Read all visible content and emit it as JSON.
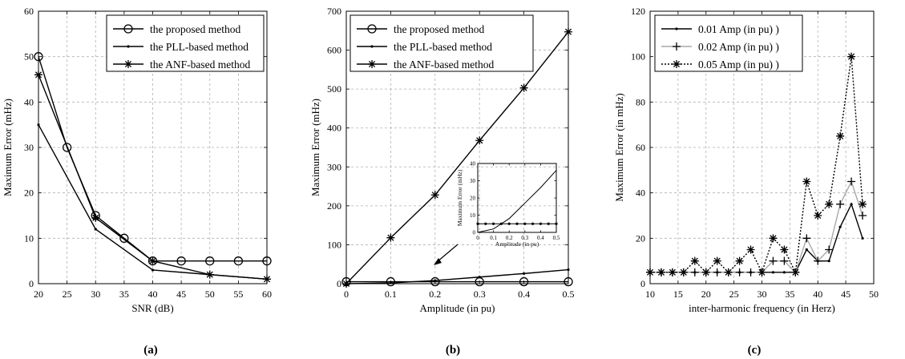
{
  "charts": [
    {
      "id": "a",
      "caption": "(a)",
      "chart_data": {
        "type": "line",
        "title": "",
        "xlabel": "SNR (dB)",
        "ylabel": "Maximum Error (mHz)",
        "xlim": [
          20,
          60
        ],
        "ylim": [
          0,
          60
        ],
        "xticks": [
          20,
          25,
          30,
          35,
          40,
          45,
          50,
          55,
          60
        ],
        "yticks": [
          0,
          10,
          20,
          30,
          40,
          50,
          60
        ],
        "grid": true,
        "legend_position": "top-right",
        "series": [
          {
            "name": "the proposed method",
            "marker": "circle",
            "color": "#000000",
            "x": [
              20,
              25,
              30,
              35,
              40,
              45,
              50,
              55,
              60
            ],
            "y": [
              50,
              30,
              15,
              10,
              5,
              5,
              5,
              5,
              5
            ]
          },
          {
            "name": "the PLL-based method",
            "marker": "dot",
            "color": "#000000",
            "x": [
              20,
              30,
              40,
              50,
              60
            ],
            "y": [
              35,
              12,
              3,
              2,
              1
            ]
          },
          {
            "name": "the ANF-based method",
            "marker": "star",
            "color": "#000000",
            "x": [
              20,
              30,
              40,
              50,
              60
            ],
            "y": [
              46,
              14.5,
              5,
              2,
              1
            ]
          }
        ]
      }
    },
    {
      "id": "b",
      "caption": "(b)",
      "chart_data": {
        "type": "line",
        "title": "",
        "xlabel": "Amplitude (in pu)",
        "ylabel": "Maximum Error (mHz)",
        "xlim": [
          0,
          0.5
        ],
        "ylim": [
          0,
          700
        ],
        "xticks": [
          0,
          0.1,
          0.2,
          0.3,
          0.4,
          0.5
        ],
        "xticklabels": [
          "0",
          "0.1",
          "0.2",
          "0.3",
          "0.4",
          "0.5"
        ],
        "yticks": [
          0,
          100,
          200,
          300,
          400,
          500,
          600,
          700
        ],
        "grid": true,
        "legend_position": "top-left",
        "series": [
          {
            "name": "the proposed method",
            "marker": "circle",
            "color": "#000000",
            "x": [
              0,
              0.1,
              0.2,
              0.3,
              0.4,
              0.5
            ],
            "y": [
              5,
              5,
              5,
              5,
              5,
              5
            ]
          },
          {
            "name": "the PLL-based method",
            "marker": "dot",
            "color": "#000000",
            "x": [
              0,
              0.1,
              0.2,
              0.3,
              0.4,
              0.5
            ],
            "y": [
              0,
              2,
              8,
              17,
              26,
              36
            ]
          },
          {
            "name": "the ANF-based method",
            "marker": "star",
            "color": "#000000",
            "x": [
              0,
              0.1,
              0.2,
              0.3,
              0.4,
              0.5
            ],
            "y": [
              0,
              118,
              228,
              368,
              503,
              647
            ]
          }
        ],
        "inset": {
          "xlabel": "Amplitude (in pu)",
          "ylabel": "Maximum Error (mHz)",
          "xlim": [
            0,
            0.5
          ],
          "ylim": [
            0,
            40
          ],
          "xticks": [
            0,
            0.1,
            0.2,
            0.3,
            0.4,
            0.5
          ],
          "xticklabels": [
            "0",
            "0.1",
            "0.2",
            "0.3",
            "0.4",
            "0.5"
          ],
          "yticks": [
            0,
            10,
            20,
            30,
            40
          ],
          "series": [
            {
              "name": "the proposed method",
              "marker": "dot",
              "x": [
                0,
                0.05,
                0.1,
                0.15,
                0.2,
                0.25,
                0.3,
                0.35,
                0.4,
                0.45,
                0.5
              ],
              "y": [
                5,
                5,
                5,
                5,
                5,
                5,
                5,
                5,
                5,
                5,
                5
              ]
            },
            {
              "name": "the PLL-based method",
              "marker": "none",
              "x": [
                0,
                0.1,
                0.2,
                0.3,
                0.4,
                0.5
              ],
              "y": [
                0,
                2,
                8,
                17,
                26,
                36
              ]
            }
          ]
        }
      }
    },
    {
      "id": "c",
      "caption": "(c)",
      "chart_data": {
        "type": "line",
        "title": "",
        "xlabel": "inter-harmonic frequency (in Herz)",
        "ylabel": "Maximum Error (in mHz)",
        "xlim": [
          10,
          50
        ],
        "ylim": [
          0,
          120
        ],
        "xticks": [
          10,
          15,
          20,
          25,
          30,
          35,
          40,
          45,
          50
        ],
        "yticks": [
          0,
          20,
          40,
          60,
          80,
          100,
          120
        ],
        "grid": true,
        "legend_position": "top-left",
        "series": [
          {
            "name": "0.01 Amp (in pu) )",
            "marker": "dot",
            "color": "#000000",
            "dash": "solid",
            "x": [
              10,
              12,
              14,
              16,
              18,
              20,
              22,
              24,
              26,
              28,
              30,
              32,
              34,
              36,
              38,
              40,
              42,
              44,
              46,
              48
            ],
            "y": [
              5,
              5,
              5,
              5,
              5,
              5,
              5,
              5,
              5,
              5,
              5,
              5,
              5,
              5,
              15,
              10,
              10,
              25,
              35,
              20
            ]
          },
          {
            "name": "0.02 Amp (in pu) )",
            "marker": "plus",
            "color": "#a8a8a8",
            "dash": "solid",
            "x": [
              10,
              12,
              14,
              16,
              18,
              20,
              22,
              24,
              26,
              28,
              30,
              32,
              34,
              36,
              38,
              40,
              42,
              44,
              46,
              48
            ],
            "y": [
              5,
              5,
              5,
              5,
              5,
              5,
              5,
              5,
              5,
              5,
              5,
              10,
              10,
              5,
              20,
              10,
              15,
              35,
              45,
              30
            ]
          },
          {
            "name": "0.05 Amp (in pu) )",
            "marker": "star",
            "color": "#000000",
            "dash": "dotted",
            "x": [
              10,
              12,
              14,
              16,
              18,
              20,
              22,
              24,
              26,
              28,
              30,
              32,
              34,
              36,
              38,
              40,
              42,
              44,
              46,
              48
            ],
            "y": [
              5,
              5,
              5,
              5,
              10,
              5,
              10,
              5,
              10,
              15,
              5,
              20,
              15,
              5,
              45,
              30,
              35,
              65,
              100,
              35
            ]
          }
        ]
      }
    }
  ]
}
